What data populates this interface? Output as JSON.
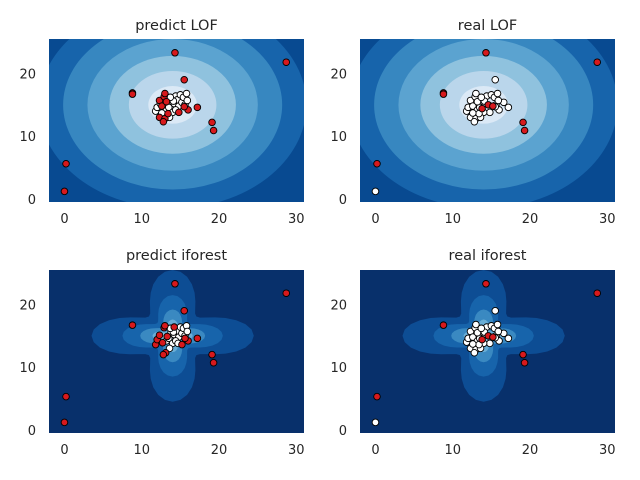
{
  "chart_data": [
    {
      "type": "scatter",
      "title": "predict LOF",
      "method": "LOF",
      "xlim": [
        -2,
        31
      ],
      "ylim": [
        -0.5,
        25.5
      ],
      "xticks": [
        0,
        10,
        20,
        30
      ],
      "yticks": [
        0,
        10,
        20
      ],
      "grid": false,
      "background": "anomaly-score contour (Blues)",
      "center": [
        14,
        15
      ],
      "outlier_points": [
        [
          14.3,
          23.3
        ],
        [
          28.7,
          21.8
        ],
        [
          15.5,
          19
        ],
        [
          8.8,
          16.9
        ],
        [
          8.8,
          16.7
        ],
        [
          0.2,
          5.6
        ],
        [
          0,
          1.2
        ],
        [
          19.1,
          12.2
        ],
        [
          19.3,
          10.9
        ],
        [
          16,
          14.2
        ],
        [
          17.2,
          14.6
        ],
        [
          12.3,
          15.7
        ],
        [
          12.6,
          14.8
        ],
        [
          12.9,
          16.3
        ],
        [
          13,
          16.8
        ],
        [
          12.3,
          13
        ],
        [
          13,
          12.8
        ],
        [
          12.8,
          12.3
        ],
        [
          14.8,
          13.8
        ],
        [
          15.5,
          14.7
        ],
        [
          13.4,
          13.6
        ],
        [
          13.2,
          15.5
        ]
      ],
      "inlier_points": [
        [
          11.8,
          14
        ],
        [
          12,
          14.6
        ],
        [
          12.4,
          15.2
        ],
        [
          13.2,
          14.2
        ],
        [
          13.5,
          14.6
        ],
        [
          13.8,
          15.6
        ],
        [
          14,
          16
        ],
        [
          14.2,
          15.2
        ],
        [
          14.4,
          16.4
        ],
        [
          14.6,
          15.8
        ],
        [
          14.8,
          14.8
        ],
        [
          15,
          16.6
        ],
        [
          15.2,
          15.4
        ],
        [
          15.4,
          16.2
        ],
        [
          15.6,
          15
        ],
        [
          15.8,
          16.8
        ],
        [
          14,
          13.8
        ],
        [
          13.6,
          13
        ],
        [
          14.4,
          14.2
        ],
        [
          12.6,
          13.7
        ],
        [
          15.9,
          15.7
        ],
        [
          14.1,
          15.6
        ],
        [
          13.7,
          16.2
        ]
      ]
    },
    {
      "type": "scatter",
      "title": "real LOF",
      "method": "LOF",
      "xlim": [
        -2,
        31
      ],
      "ylim": [
        -0.5,
        25.5
      ],
      "xticks": [
        0,
        10,
        20,
        30
      ],
      "yticks": [
        0,
        10,
        20
      ],
      "grid": false,
      "background": "anomaly-score contour (Blues)",
      "center": [
        14,
        15
      ],
      "outlier_points": [
        [
          14.3,
          23.3
        ],
        [
          28.7,
          21.8
        ],
        [
          8.8,
          16.9
        ],
        [
          8.8,
          16.7
        ],
        [
          0.2,
          5.6
        ],
        [
          19.1,
          12.2
        ],
        [
          19.3,
          10.9
        ],
        [
          14.6,
          15
        ],
        [
          15.2,
          14.8
        ],
        [
          13.8,
          14.4
        ]
      ],
      "inlier_points": [
        [
          15.5,
          19
        ],
        [
          0,
          1.2
        ],
        [
          11.8,
          14
        ],
        [
          12,
          14.6
        ],
        [
          12.3,
          15.7
        ],
        [
          12.6,
          14.8
        ],
        [
          12.9,
          16.3
        ],
        [
          13,
          16.8
        ],
        [
          12.3,
          13
        ],
        [
          13,
          12.8
        ],
        [
          12.8,
          12.3
        ],
        [
          13.2,
          14.2
        ],
        [
          13.5,
          14.6
        ],
        [
          13.8,
          15.6
        ],
        [
          14,
          16
        ],
        [
          14.2,
          15.2
        ],
        [
          14.4,
          16.4
        ],
        [
          14.8,
          13.8
        ],
        [
          15,
          16.6
        ],
        [
          15.4,
          16.2
        ],
        [
          15.6,
          15
        ],
        [
          15.8,
          16.8
        ],
        [
          16,
          14.2
        ],
        [
          17.2,
          14.6
        ],
        [
          16.6,
          15.4
        ],
        [
          14,
          13.8
        ],
        [
          13.6,
          13
        ],
        [
          13.4,
          13.6
        ],
        [
          13.2,
          15.5
        ],
        [
          15.5,
          14.7
        ],
        [
          12.6,
          13.7
        ],
        [
          14.1,
          15.6
        ],
        [
          13.7,
          16.2
        ],
        [
          15.9,
          15.7
        ]
      ]
    },
    {
      "type": "scatter",
      "title": "predict iforest",
      "method": "iforest",
      "xlim": [
        -2,
        31
      ],
      "ylim": [
        -0.5,
        25.5
      ],
      "xticks": [
        0,
        10,
        20,
        30
      ],
      "yticks": [
        0,
        10,
        20
      ],
      "grid": false,
      "background": "anomaly-score contour (Blues)",
      "center": [
        14,
        15
      ],
      "outlier_points": [
        [
          14.3,
          23.3
        ],
        [
          28.7,
          21.8
        ],
        [
          15.5,
          19
        ],
        [
          8.8,
          16.7
        ],
        [
          0.2,
          5.3
        ],
        [
          0,
          1.2
        ],
        [
          19.1,
          12
        ],
        [
          19.3,
          10.7
        ],
        [
          11.8,
          13.6
        ],
        [
          12,
          14.4
        ],
        [
          12.3,
          15.1
        ],
        [
          12.7,
          13.9
        ],
        [
          12.9,
          16.3
        ],
        [
          13,
          16.6
        ],
        [
          13.1,
          12.3
        ],
        [
          12.8,
          12
        ],
        [
          13.3,
          14.9
        ],
        [
          16,
          14.2
        ],
        [
          17.2,
          14.6
        ],
        [
          15.2,
          13.6
        ],
        [
          15.6,
          14.6
        ],
        [
          14.2,
          16.4
        ]
      ],
      "inlier_points": [
        [
          13.2,
          14.2
        ],
        [
          13.5,
          14.6
        ],
        [
          13.8,
          15.6
        ],
        [
          14,
          16
        ],
        [
          14.2,
          15.2
        ],
        [
          14.6,
          15.8
        ],
        [
          14.8,
          14.8
        ],
        [
          15,
          16.4
        ],
        [
          15.2,
          15.4
        ],
        [
          15.4,
          16.2
        ],
        [
          15.6,
          15
        ],
        [
          15.8,
          16.6
        ],
        [
          14,
          13.8
        ],
        [
          13.6,
          13
        ],
        [
          14.4,
          14.2
        ],
        [
          14.1,
          15.6
        ],
        [
          13.7,
          16.2
        ],
        [
          15.9,
          15.7
        ],
        [
          14.7,
          13.8
        ]
      ]
    },
    {
      "type": "scatter",
      "title": "real iforest",
      "method": "iforest",
      "xlim": [
        -2,
        31
      ],
      "ylim": [
        -0.5,
        25.5
      ],
      "xticks": [
        0,
        10,
        20,
        30
      ],
      "yticks": [
        0,
        10,
        20
      ],
      "grid": false,
      "background": "anomaly-score contour (Blues)",
      "center": [
        14,
        15
      ],
      "outlier_points": [
        [
          14.3,
          23.3
        ],
        [
          28.7,
          21.8
        ],
        [
          8.8,
          16.7
        ],
        [
          0.2,
          5.3
        ],
        [
          19.1,
          12
        ],
        [
          19.3,
          10.7
        ],
        [
          14.6,
          15
        ],
        [
          15.2,
          14.8
        ],
        [
          13.8,
          14.4
        ]
      ],
      "inlier_points": [
        [
          15.5,
          19
        ],
        [
          0,
          1.2
        ],
        [
          11.8,
          14
        ],
        [
          12,
          14.6
        ],
        [
          12.3,
          15.7
        ],
        [
          12.6,
          14.8
        ],
        [
          12.9,
          16.3
        ],
        [
          13,
          16.8
        ],
        [
          12.3,
          13
        ],
        [
          13,
          12.8
        ],
        [
          12.8,
          12.3
        ],
        [
          13.2,
          14.2
        ],
        [
          13.5,
          14.6
        ],
        [
          13.8,
          15.6
        ],
        [
          14,
          16
        ],
        [
          14.2,
          15.2
        ],
        [
          14.4,
          16.4
        ],
        [
          14.8,
          13.8
        ],
        [
          15,
          16.6
        ],
        [
          15.4,
          16.2
        ],
        [
          15.6,
          15
        ],
        [
          15.8,
          16.8
        ],
        [
          16,
          14.2
        ],
        [
          17.2,
          14.6
        ],
        [
          16.6,
          15.4
        ],
        [
          14,
          13.8
        ],
        [
          13.6,
          13
        ],
        [
          13.4,
          13.6
        ],
        [
          13.2,
          15.5
        ],
        [
          15.5,
          14.7
        ],
        [
          12.6,
          13.7
        ],
        [
          14.1,
          15.6
        ],
        [
          13.7,
          16.2
        ],
        [
          15.9,
          15.7
        ]
      ]
    }
  ],
  "colors": {
    "outlier_fill": "#d7191c",
    "inlier_fill": "#ffffff",
    "marker_edge": "#000000",
    "text": "#262626",
    "lof_levels": [
      "#084a91",
      "#1764ab",
      "#3787c0",
      "#5ba3d0",
      "#8fc2de",
      "#bad6eb",
      "#dbe9f6"
    ],
    "iforest_levels": [
      "#08306b",
      "#0d4d94",
      "#1764ab",
      "#3a89c1",
      "#6aaed6",
      "#9ecae1"
    ]
  }
}
